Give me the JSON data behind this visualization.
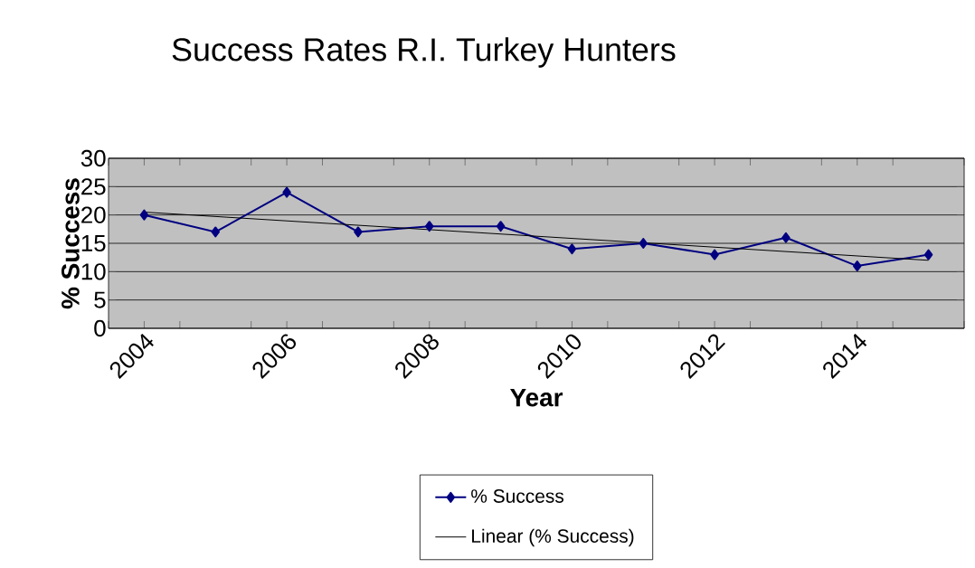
{
  "chart_data": {
    "type": "line",
    "title": "Success Rates R.I. Turkey Hunters",
    "xlabel": "Year",
    "ylabel": "% Success",
    "x": [
      2004,
      2005,
      2006,
      2007,
      2008,
      2009,
      2010,
      2011,
      2012,
      2013,
      2014,
      2015
    ],
    "series": [
      {
        "name": "% Success",
        "color": "#000080",
        "marker": "diamond",
        "values": [
          20,
          17,
          24,
          17,
          18,
          18,
          14,
          15,
          13,
          16,
          11,
          13
        ]
      },
      {
        "name": "Linear (% Success)",
        "type": "line",
        "color": "#000000",
        "marker": "none",
        "x": [
          2004,
          2015
        ],
        "values": [
          20.5,
          12
        ]
      }
    ],
    "xlim": [
      2003.5,
      2015.5
    ],
    "xticks": [
      {
        "value": 2003.5,
        "label": null
      },
      {
        "value": 2004,
        "label": "2004"
      },
      {
        "value": 2004.5,
        "label": null
      },
      {
        "value": 2005.5,
        "label": null
      },
      {
        "value": 2006,
        "label": "2006"
      },
      {
        "value": 2006.5,
        "label": null
      },
      {
        "value": 2007.5,
        "label": null
      },
      {
        "value": 2008,
        "label": "2008"
      },
      {
        "value": 2008.5,
        "label": null
      },
      {
        "value": 2009.5,
        "label": null
      },
      {
        "value": 2010,
        "label": "2010"
      },
      {
        "value": 2010.5,
        "label": null
      },
      {
        "value": 2011.5,
        "label": null
      },
      {
        "value": 2012,
        "label": "2012"
      },
      {
        "value": 2012.5,
        "label": null
      },
      {
        "value": 2013.5,
        "label": null
      },
      {
        "value": 2014,
        "label": "2014"
      },
      {
        "value": 2014.5,
        "label": null
      },
      {
        "value": 2015.5,
        "label": null
      }
    ],
    "ylim": [
      0,
      30
    ],
    "yticks": [
      0,
      5,
      10,
      15,
      20,
      25,
      30
    ],
    "grid": "y",
    "legend": "bottom"
  }
}
